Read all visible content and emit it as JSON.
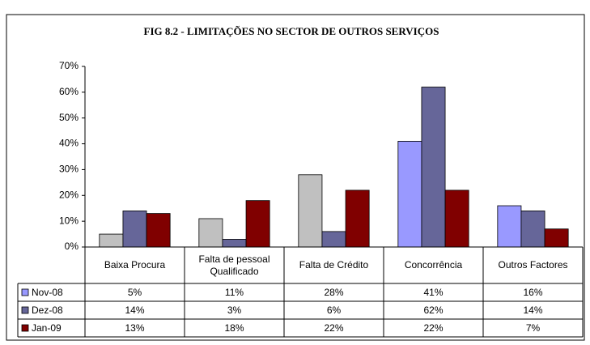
{
  "chart_data": {
    "type": "bar",
    "title": "FIG 8.2 - LIMITAÇÕES  NO SECTOR DE OUTROS SERVIÇOS",
    "categories": [
      "Baixa Procura",
      "Falta de pessoal Qualificado",
      "Falta de Crédito",
      "Concorrência",
      "Outros Factores"
    ],
    "series": [
      {
        "name": "Nov-08",
        "color": "#9999ff",
        "colors": [
          "#c0c0c0",
          "#c0c0c0",
          "#c0c0c0",
          "#9999ff",
          "#9999ff"
        ],
        "values": [
          5,
          11,
          28,
          41,
          16
        ],
        "value_labels": [
          "5%",
          "11%",
          "28%",
          "41%",
          "16%"
        ]
      },
      {
        "name": "Dez-08",
        "color": "#666699",
        "values": [
          14,
          3,
          6,
          62,
          14
        ],
        "value_labels": [
          "14%",
          "3%",
          "6%",
          "62%",
          "14%"
        ]
      },
      {
        "name": "Jan-09",
        "color": "#800000",
        "values": [
          13,
          18,
          22,
          22,
          7
        ],
        "value_labels": [
          "13%",
          "18%",
          "22%",
          "22%",
          "7%"
        ]
      }
    ],
    "ylim": [
      0,
      70
    ],
    "yticks": [
      {
        "value": 0,
        "label": "0%"
      },
      {
        "value": 10,
        "label": "10%"
      },
      {
        "value": 20,
        "label": "20%"
      },
      {
        "value": 30,
        "label": "30%"
      },
      {
        "value": 40,
        "label": "40%"
      },
      {
        "value": 50,
        "label": "50%"
      },
      {
        "value": 60,
        "label": "60%"
      },
      {
        "value": 70,
        "label": "70%"
      }
    ],
    "grid": false
  }
}
